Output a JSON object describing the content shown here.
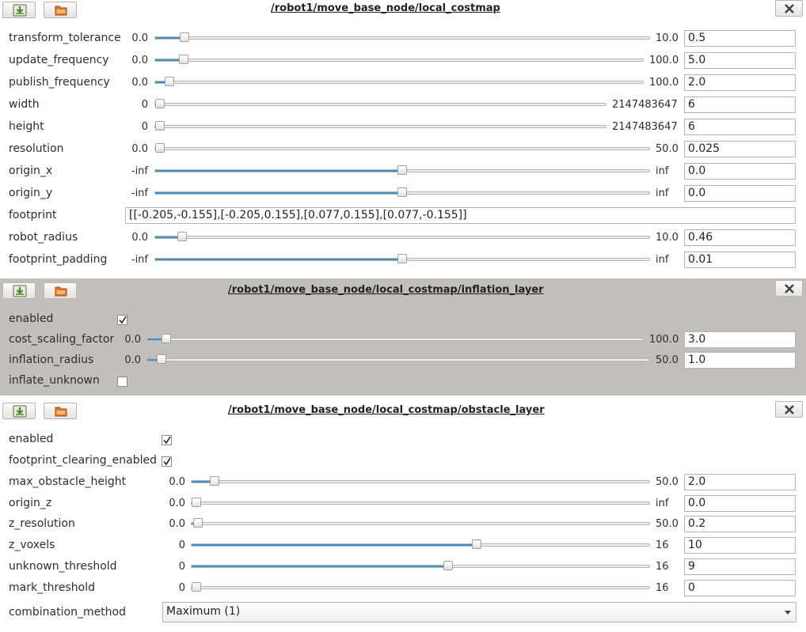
{
  "panels": [
    {
      "title": "/robot1/move_base_node/local_costmap",
      "params": [
        {
          "name": "transform_tolerance",
          "min": "0.0",
          "max": "10.0",
          "value": "0.5",
          "fraction": 0.05
        },
        {
          "name": "update_frequency",
          "min": "0.0",
          "max": "100.0",
          "value": "5.0",
          "fraction": 0.05
        },
        {
          "name": "publish_frequency",
          "min": "0.0",
          "max": "100.0",
          "value": "2.0",
          "fraction": 0.02
        },
        {
          "name": "width",
          "min": "0",
          "max": "2147483647",
          "value": "6",
          "fraction": 0.0
        },
        {
          "name": "height",
          "min": "0",
          "max": "2147483647",
          "value": "6",
          "fraction": 0.0
        },
        {
          "name": "resolution",
          "min": "0.0",
          "max": "50.0",
          "value": "0.025",
          "fraction": 0.0
        },
        {
          "name": "origin_x",
          "min": "-inf",
          "max": "inf",
          "value": "0.0",
          "fraction": 0.5
        },
        {
          "name": "origin_y",
          "min": "-inf",
          "max": "inf",
          "value": "0.0",
          "fraction": 0.5
        },
        {
          "name": "footprint",
          "value": "[[-0.205,-0.155],[-0.205,0.155],[0.077,0.155],[0.077,-0.155]]"
        },
        {
          "name": "robot_radius",
          "min": "0.0",
          "max": "10.0",
          "value": "0.46",
          "fraction": 0.046
        },
        {
          "name": "footprint_padding",
          "min": "-inf",
          "max": "inf",
          "value": "0.01",
          "fraction": 0.5
        }
      ]
    },
    {
      "title": "/robot1/move_base_node/local_costmap/inflation_layer",
      "params": [
        {
          "name": "enabled",
          "checked": true
        },
        {
          "name": "cost_scaling_factor",
          "min": "0.0",
          "max": "100.0",
          "value": "3.0",
          "fraction": 0.03
        },
        {
          "name": "inflation_radius",
          "min": "0.0",
          "max": "50.0",
          "value": "1.0",
          "fraction": 0.02
        },
        {
          "name": "inflate_unknown",
          "checked": false
        }
      ]
    },
    {
      "title": "/robot1/move_base_node/local_costmap/obstacle_layer",
      "params": [
        {
          "name": "enabled",
          "checked": true
        },
        {
          "name": "footprint_clearing_enabled",
          "checked": true
        },
        {
          "name": "max_obstacle_height",
          "min": "0.0",
          "max": "50.0",
          "value": "2.0",
          "fraction": 0.04
        },
        {
          "name": "origin_z",
          "min": "0.0",
          "max": "inf",
          "value": "0.0",
          "fraction": 0.0
        },
        {
          "name": "z_resolution",
          "min": "0.0",
          "max": "50.0",
          "value": "0.2",
          "fraction": 0.004
        },
        {
          "name": "z_voxels",
          "min": "0",
          "max": "16",
          "value": "10",
          "fraction": 0.625
        },
        {
          "name": "unknown_threshold",
          "min": "0",
          "max": "16",
          "value": "9",
          "fraction": 0.5625
        },
        {
          "name": "mark_threshold",
          "min": "0",
          "max": "16",
          "value": "0",
          "fraction": 0.0
        },
        {
          "name": "combination_method",
          "selected": "Maximum (1)"
        }
      ]
    }
  ],
  "icons": {
    "save": "save-icon",
    "load": "load-icon",
    "close": "close-icon"
  },
  "colors": {
    "accent": "#3d8fce",
    "inactive_panel": "#c2bfbb"
  }
}
